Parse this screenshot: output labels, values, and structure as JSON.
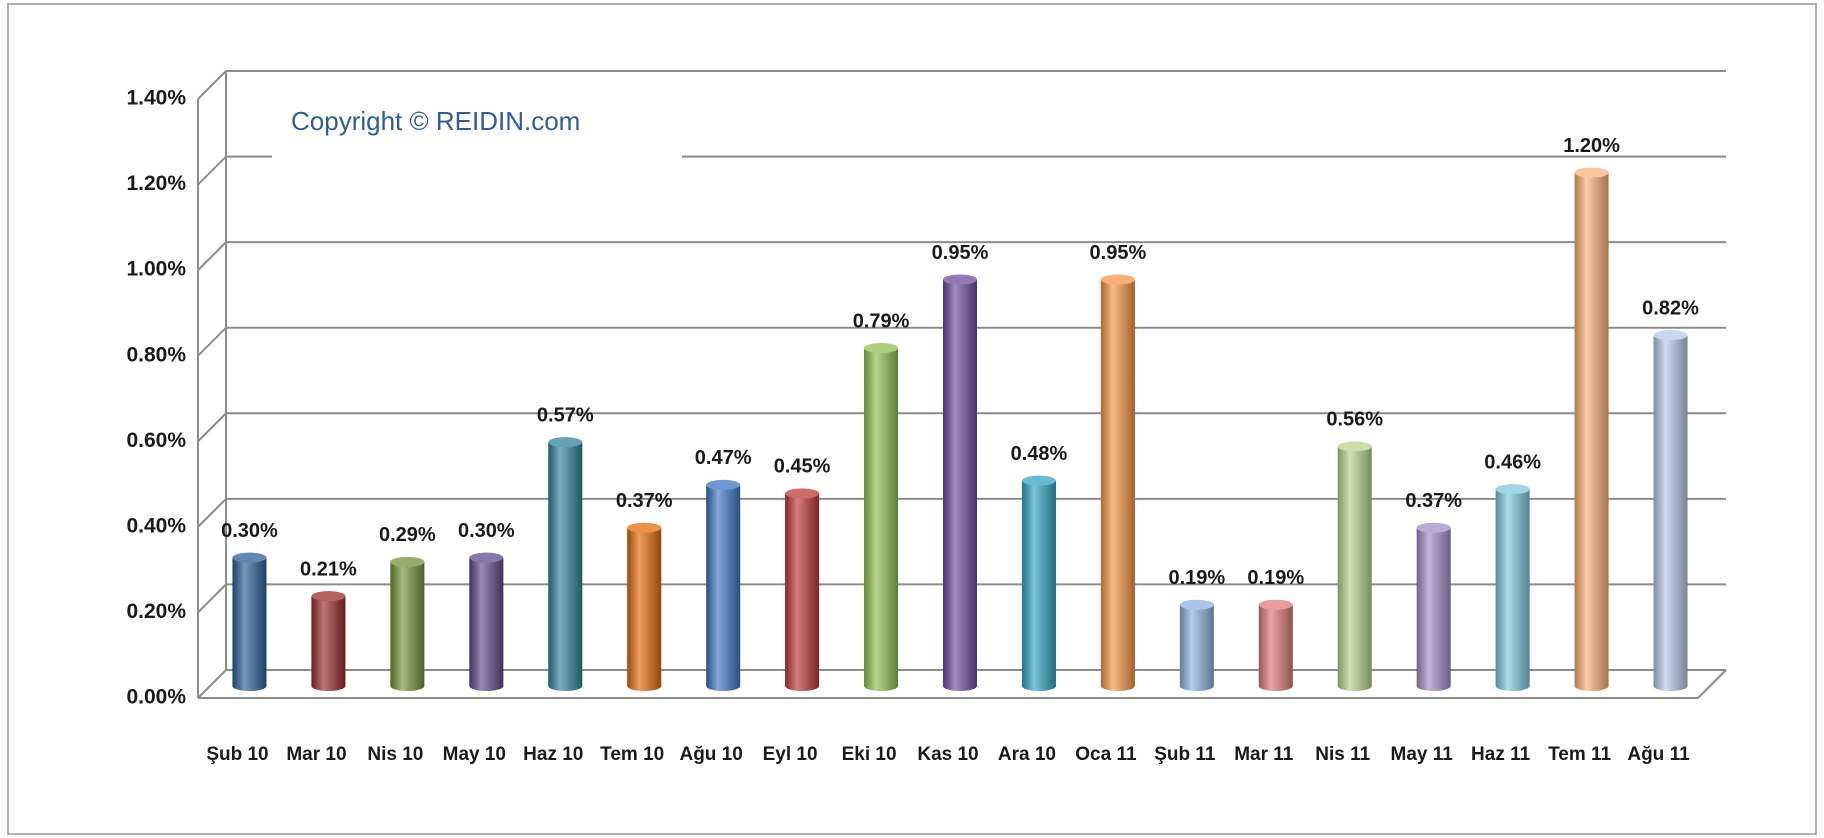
{
  "chart_data": {
    "type": "bar",
    "annotation": "Copyright © REIDIN.com",
    "categories": [
      "Şub 10",
      "Mar 10",
      "Nis 10",
      "May 10",
      "Haz 10",
      "Tem 10",
      "Ağu 10",
      "Eyl 10",
      "Eki 10",
      "Kas 10",
      "Ara 10",
      "Oca 11",
      "Şub 11",
      "Mar 11",
      "Nis 11",
      "May 11",
      "Haz 11",
      "Tem 11",
      "Ağu 11"
    ],
    "values": [
      0.3,
      0.21,
      0.29,
      0.3,
      0.57,
      0.37,
      0.47,
      0.45,
      0.79,
      0.95,
      0.48,
      0.95,
      0.19,
      0.19,
      0.56,
      0.37,
      0.46,
      1.2,
      0.82
    ],
    "value_labels": [
      "0.30%",
      "0.21%",
      "0.29%",
      "0.30%",
      "0.57%",
      "0.37%",
      "0.47%",
      "0.45%",
      "0.79%",
      "0.95%",
      "0.48%",
      "0.95%",
      "0.19%",
      "0.19%",
      "0.56%",
      "0.37%",
      "0.46%",
      "1.20%",
      "0.82%"
    ],
    "colors": [
      "#2f5f98",
      "#9b2d2a",
      "#77933c",
      "#5f4b8b",
      "#31859c",
      "#e46c0a",
      "#3e76c4",
      "#c0393a",
      "#92c050",
      "#6f4f9f",
      "#34a6c4",
      "#f79646",
      "#8db3e2",
      "#e07a78",
      "#b9d58a",
      "#a28fc6",
      "#7fc8de",
      "#fbb07a",
      "#b7c9ea"
    ],
    "ylim": [
      0,
      1.4
    ],
    "yticks": [
      {
        "value": 0,
        "label": "0.00%"
      },
      {
        "value": 0.2,
        "label": "0.20%"
      },
      {
        "value": 0.4,
        "label": "0.40%"
      },
      {
        "value": 0.6,
        "label": "0.60%"
      },
      {
        "value": 0.8,
        "label": "0.80%"
      },
      {
        "value": 1.0,
        "label": "1.00%"
      },
      {
        "value": 1.2,
        "label": "1.20%"
      },
      {
        "value": 1.4,
        "label": "1.40%"
      }
    ],
    "grid": true
  }
}
